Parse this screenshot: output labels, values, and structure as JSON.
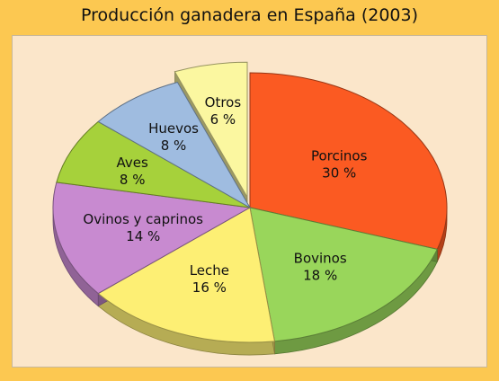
{
  "title": "Producción ganadera en España (2003)",
  "chart_data": {
    "type": "pie",
    "title": "Producción ganadera en España (2003)",
    "slices": [
      {
        "label": "Porcinos",
        "value": 30,
        "value_label": "30 %",
        "color": "#fb5a22",
        "exploded": false
      },
      {
        "label": "Bovinos",
        "value": 18,
        "value_label": "18 %",
        "color": "#99d65b",
        "exploded": false
      },
      {
        "label": "Leche",
        "value": 16,
        "value_label": "16 %",
        "color": "#fdef74",
        "exploded": false
      },
      {
        "label": "Ovinos y caprinos",
        "value": 14,
        "value_label": "14 %",
        "color": "#c88ad0",
        "exploded": false
      },
      {
        "label": "Aves",
        "value": 8,
        "value_label": "8 %",
        "color": "#a6d13b",
        "exploded": false
      },
      {
        "label": "Huevos",
        "value": 8,
        "value_label": "8 %",
        "color": "#9fbce0",
        "exploded": false
      },
      {
        "label": "Otros",
        "value": 6,
        "value_label": "6 %",
        "color": "#fbf7a0",
        "exploded": true
      }
    ],
    "style": "3d-exploded-pie"
  }
}
